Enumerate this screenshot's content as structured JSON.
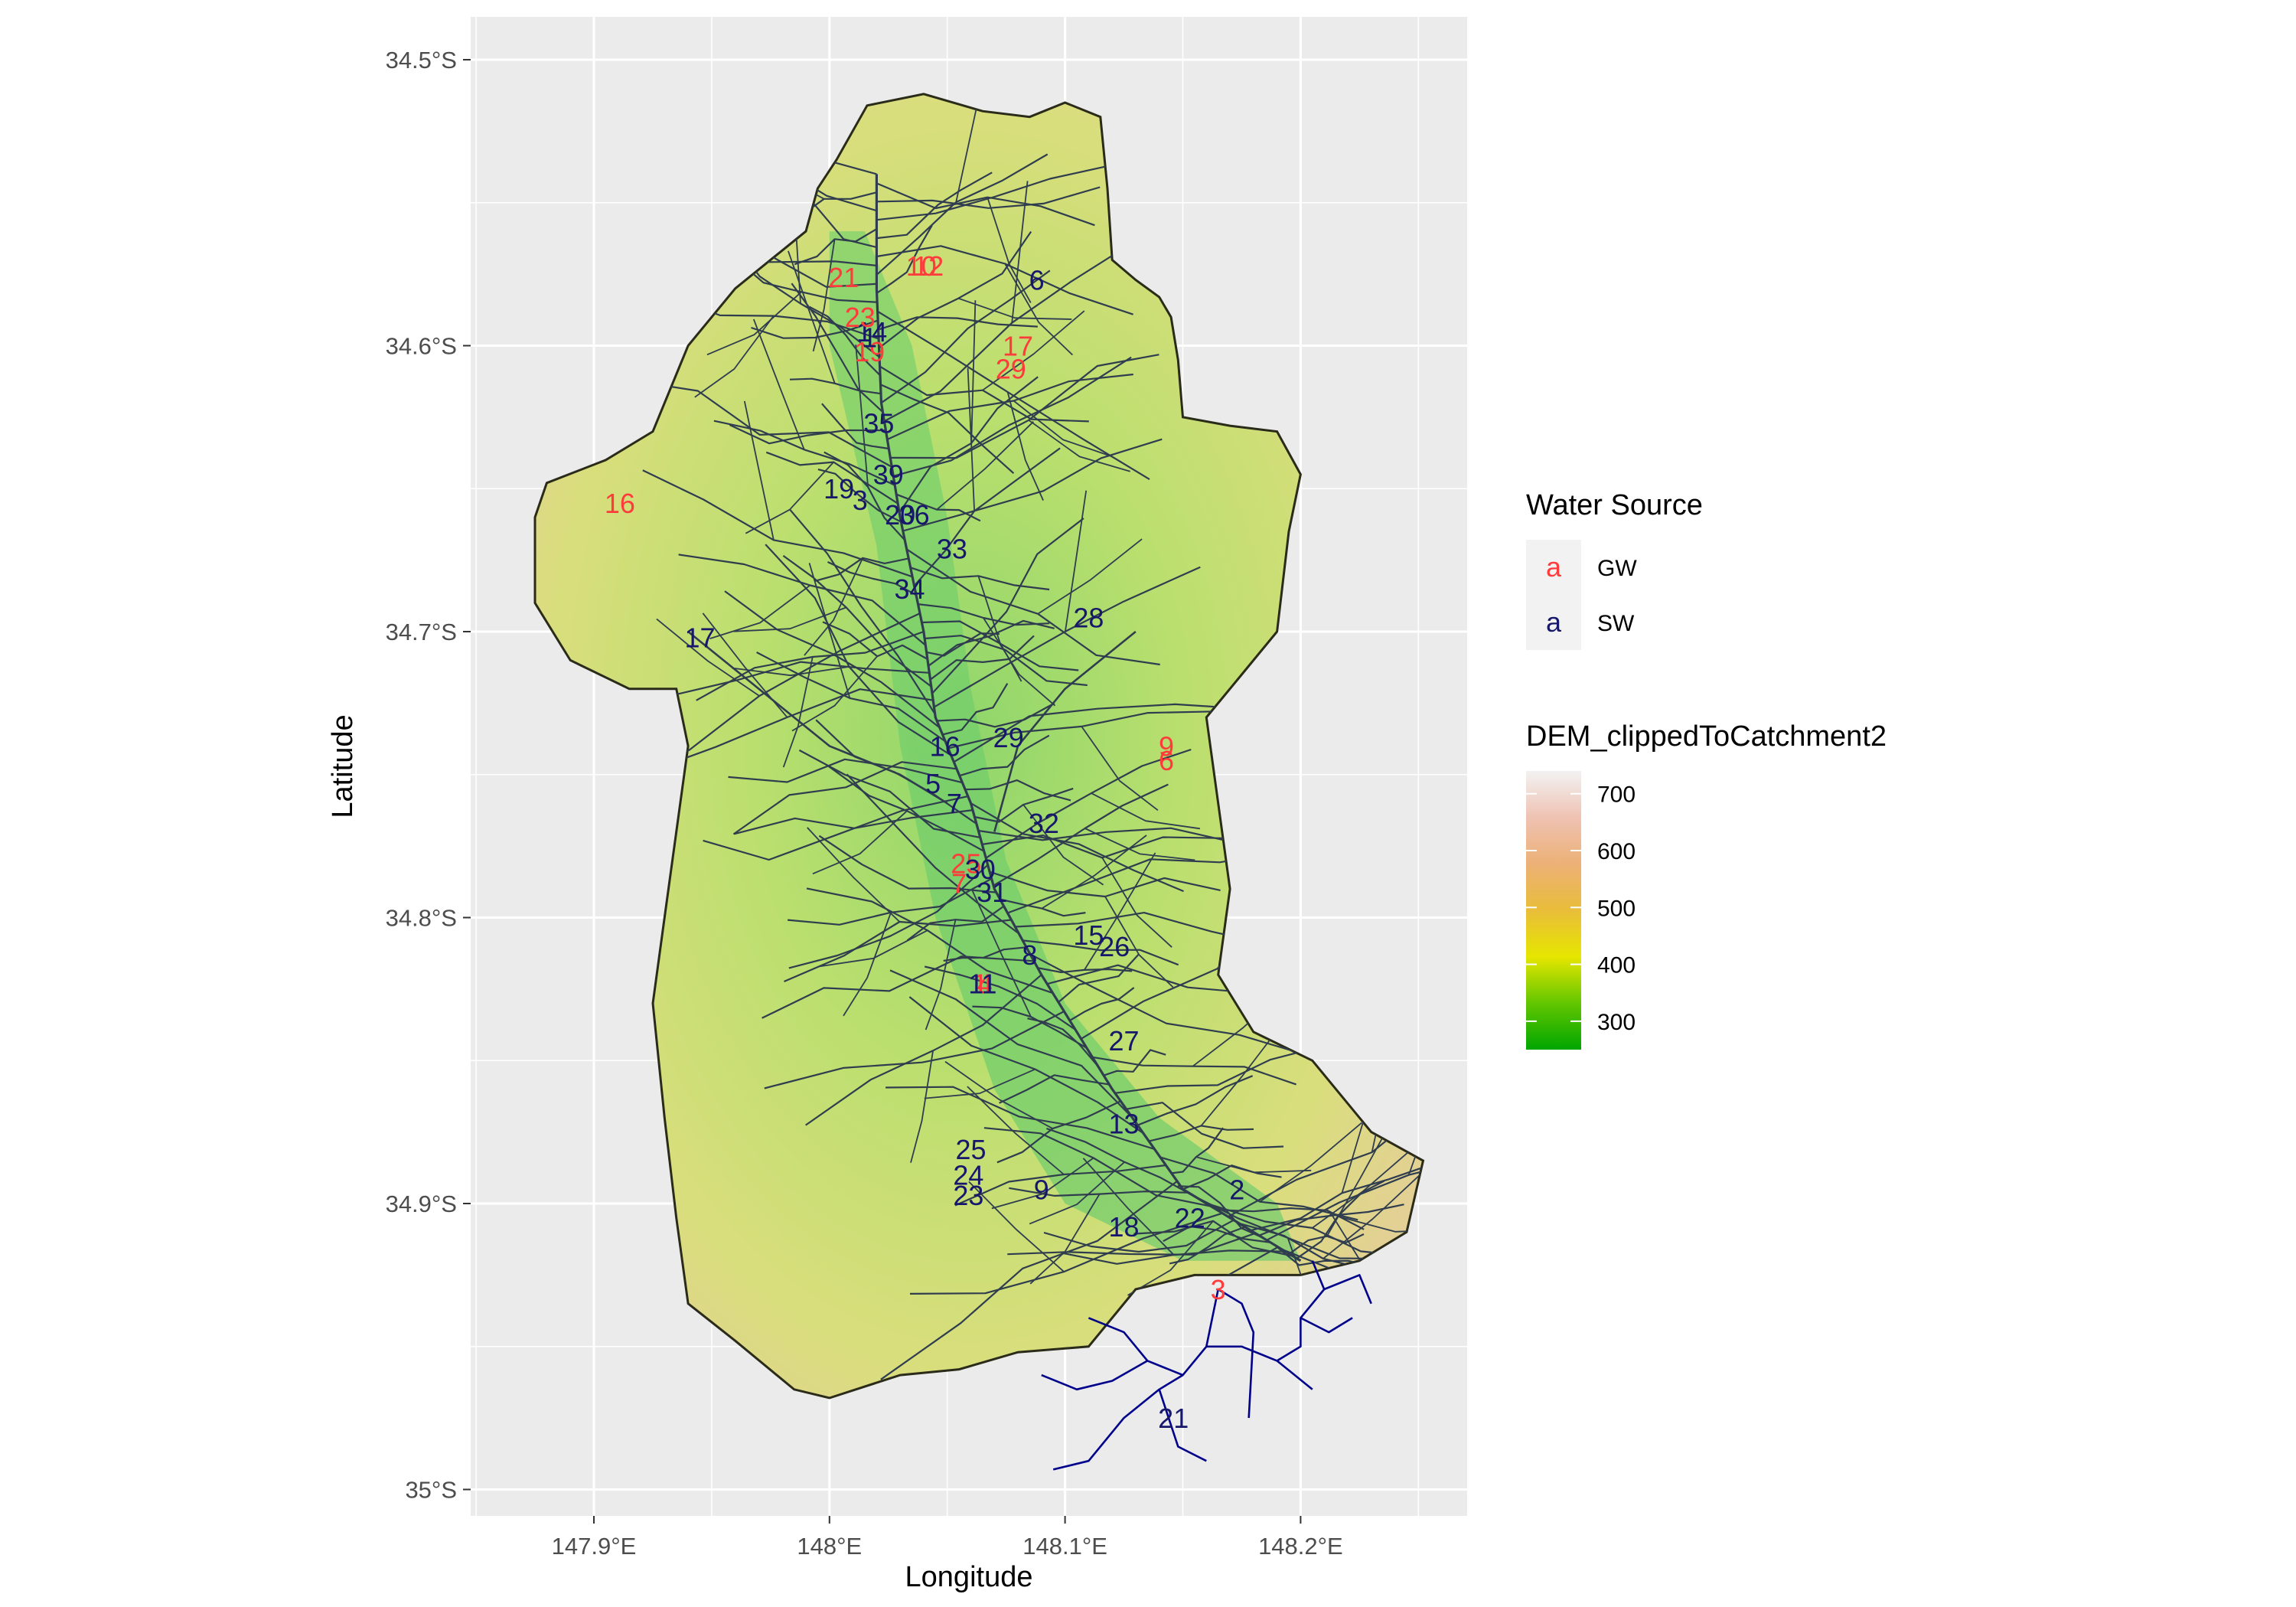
{
  "chart_data": {
    "type": "map",
    "xlabel": "Longitude",
    "ylabel": "Latitude",
    "xlim": [
      147.85,
      148.27
    ],
    "ylim": [
      -35.01,
      -34.485
    ],
    "x_ticks": [
      {
        "value": 147.9,
        "label": "147.9°E"
      },
      {
        "value": 148.0,
        "label": "148°E"
      },
      {
        "value": 148.1,
        "label": "148.1°E"
      },
      {
        "value": 148.2,
        "label": "148.2°E"
      }
    ],
    "y_ticks": [
      {
        "value": -34.5,
        "label": "34.5°S"
      },
      {
        "value": -34.6,
        "label": "34.6°S"
      },
      {
        "value": -34.7,
        "label": "34.7°S"
      },
      {
        "value": -34.8,
        "label": "34.8°S"
      },
      {
        "value": -34.9,
        "label": "34.9°S"
      },
      {
        "value": -35.0,
        "label": "35°S"
      }
    ],
    "grid": true,
    "panel_background": "#ebebeb",
    "catchment_boundary": [
      [
        148.016,
        -34.516
      ],
      [
        148.04,
        -34.512
      ],
      [
        148.065,
        -34.518
      ],
      [
        148.085,
        -34.52
      ],
      [
        148.1,
        -34.515
      ],
      [
        148.115,
        -34.52
      ],
      [
        148.118,
        -34.545
      ],
      [
        148.12,
        -34.57
      ],
      [
        148.13,
        -34.577
      ],
      [
        148.14,
        -34.583
      ],
      [
        148.145,
        -34.59
      ],
      [
        148.148,
        -34.605
      ],
      [
        148.15,
        -34.625
      ],
      [
        148.17,
        -34.628
      ],
      [
        148.19,
        -34.63
      ],
      [
        148.2,
        -34.645
      ],
      [
        148.195,
        -34.665
      ],
      [
        148.19,
        -34.7
      ],
      [
        148.175,
        -34.715
      ],
      [
        148.16,
        -34.73
      ],
      [
        148.165,
        -34.76
      ],
      [
        148.17,
        -34.79
      ],
      [
        148.165,
        -34.82
      ],
      [
        148.18,
        -34.84
      ],
      [
        148.205,
        -34.85
      ],
      [
        148.23,
        -34.875
      ],
      [
        148.252,
        -34.885
      ],
      [
        148.245,
        -34.91
      ],
      [
        148.225,
        -34.92
      ],
      [
        148.2,
        -34.925
      ],
      [
        148.18,
        -34.925
      ],
      [
        148.155,
        -34.925
      ],
      [
        148.13,
        -34.93
      ],
      [
        148.11,
        -34.95
      ],
      [
        148.08,
        -34.952
      ],
      [
        148.055,
        -34.958
      ],
      [
        148.03,
        -34.96
      ],
      [
        148.0,
        -34.968
      ],
      [
        147.985,
        -34.965
      ],
      [
        147.96,
        -34.948
      ],
      [
        147.94,
        -34.935
      ],
      [
        147.935,
        -34.905
      ],
      [
        147.93,
        -34.87
      ],
      [
        147.925,
        -34.83
      ],
      [
        147.93,
        -34.8
      ],
      [
        147.935,
        -34.77
      ],
      [
        147.94,
        -34.74
      ],
      [
        147.935,
        -34.72
      ],
      [
        147.915,
        -34.72
      ],
      [
        147.89,
        -34.71
      ],
      [
        147.875,
        -34.69
      ],
      [
        147.875,
        -34.66
      ],
      [
        147.88,
        -34.648
      ],
      [
        147.905,
        -34.64
      ],
      [
        147.925,
        -34.63
      ],
      [
        147.94,
        -34.6
      ],
      [
        147.96,
        -34.58
      ],
      [
        147.99,
        -34.56
      ],
      [
        147.995,
        -34.545
      ],
      [
        148.003,
        -34.535
      ],
      [
        148.016,
        -34.516
      ]
    ],
    "site_labels": [
      {
        "label": "1",
        "source": "GW",
        "x": 148.064,
        "y": -34.823
      },
      {
        "label": "2",
        "source": "SW",
        "x": 148.173,
        "y": -34.895
      },
      {
        "label": "3",
        "source": "SW",
        "x": 148.013,
        "y": -34.654
      },
      {
        "label": "4",
        "source": "GW",
        "x": 148.066,
        "y": -34.823
      },
      {
        "label": "5",
        "source": "SW",
        "x": 148.044,
        "y": -34.753
      },
      {
        "label": "6",
        "source": "SW",
        "x": 148.088,
        "y": -34.577
      },
      {
        "label": "7",
        "source": "SW",
        "x": 148.053,
        "y": -34.76
      },
      {
        "label": "7",
        "source": "GW",
        "x": 148.055,
        "y": -34.788
      },
      {
        "label": "8",
        "source": "SW",
        "x": 148.085,
        "y": -34.813
      },
      {
        "label": "9",
        "source": "SW",
        "x": 148.09,
        "y": -34.895
      },
      {
        "label": "9",
        "source": "GW",
        "x": 148.143,
        "y": -34.74
      },
      {
        "label": "6",
        "source": "GW",
        "x": 148.143,
        "y": -34.745
      },
      {
        "label": "10",
        "source": "GW",
        "x": 148.039,
        "y": -34.572
      },
      {
        "label": "12",
        "source": "GW",
        "x": 148.042,
        "y": -34.572
      },
      {
        "label": "11",
        "source": "SW",
        "x": 148.065,
        "y": -34.823
      },
      {
        "label": "13",
        "source": "SW",
        "x": 148.125,
        "y": -34.872
      },
      {
        "label": "14",
        "source": "SW",
        "x": 148.018,
        "y": -34.595
      },
      {
        "label": "15",
        "source": "SW",
        "x": 148.11,
        "y": -34.806
      },
      {
        "label": "16",
        "source": "SW",
        "x": 148.049,
        "y": -34.74
      },
      {
        "label": "16",
        "source": "GW",
        "x": 147.911,
        "y": -34.655
      },
      {
        "label": "17",
        "source": "SW",
        "x": 147.945,
        "y": -34.702
      },
      {
        "label": "17",
        "source": "GW",
        "x": 148.08,
        "y": -34.6
      },
      {
        "label": "18",
        "source": "SW",
        "x": 148.125,
        "y": -34.908
      },
      {
        "label": "19",
        "source": "SW",
        "x": 148.004,
        "y": -34.65
      },
      {
        "label": "19",
        "source": "GW",
        "x": 148.017,
        "y": -34.602
      },
      {
        "label": "20",
        "source": "SW",
        "x": 148.03,
        "y": -34.659
      },
      {
        "label": "21",
        "source": "SW",
        "x": 148.146,
        "y": -34.975
      },
      {
        "label": "21",
        "source": "GW",
        "x": 148.006,
        "y": -34.576
      },
      {
        "label": "22",
        "source": "SW",
        "x": 148.153,
        "y": -34.905
      },
      {
        "label": "23",
        "source": "SW",
        "x": 148.059,
        "y": -34.897
      },
      {
        "label": "23",
        "source": "GW",
        "x": 148.013,
        "y": -34.59
      },
      {
        "label": "24",
        "source": "SW",
        "x": 148.059,
        "y": -34.89
      },
      {
        "label": "25",
        "source": "SW",
        "x": 148.06,
        "y": -34.881
      },
      {
        "label": "25",
        "source": "GW",
        "x": 148.058,
        "y": -34.781
      },
      {
        "label": "26",
        "source": "SW",
        "x": 148.121,
        "y": -34.81
      },
      {
        "label": "27",
        "source": "SW",
        "x": 148.125,
        "y": -34.843
      },
      {
        "label": "28",
        "source": "SW",
        "x": 148.11,
        "y": -34.695
      },
      {
        "label": "29",
        "source": "SW",
        "x": 148.076,
        "y": -34.737
      },
      {
        "label": "29",
        "source": "GW",
        "x": 148.077,
        "y": -34.608
      },
      {
        "label": "30",
        "source": "SW",
        "x": 148.064,
        "y": -34.783
      },
      {
        "label": "31",
        "source": "SW",
        "x": 148.069,
        "y": -34.791
      },
      {
        "label": "32",
        "source": "SW",
        "x": 148.091,
        "y": -34.767
      },
      {
        "label": "33",
        "source": "SW",
        "x": 148.052,
        "y": -34.671
      },
      {
        "label": "34",
        "source": "SW",
        "x": 148.034,
        "y": -34.685
      },
      {
        "label": "35",
        "source": "SW",
        "x": 148.021,
        "y": -34.627
      },
      {
        "label": "36",
        "source": "SW",
        "x": 148.036,
        "y": -34.659
      },
      {
        "label": "39",
        "source": "SW",
        "x": 148.025,
        "y": -34.645
      },
      {
        "label": "1",
        "source": "SW",
        "x": 148.017,
        "y": -34.597
      },
      {
        "label": "3",
        "source": "GW",
        "x": 148.165,
        "y": -34.93
      }
    ],
    "legend": {
      "water_source": {
        "title": "Water Source",
        "key_glyph": "a",
        "entries": [
          {
            "label": "GW",
            "color": "#ff3b3b"
          },
          {
            "label": "SW",
            "color": "#17176b"
          }
        ]
      },
      "dem": {
        "title": "DEM_clippedToCatchment2",
        "ticks": [
          700,
          600,
          500,
          400,
          300
        ],
        "range": [
          250,
          740
        ],
        "colors": [
          "#00a600",
          "#63c600",
          "#e6e600",
          "#e9bd3a",
          "#ecb176",
          "#efc2b3",
          "#f2f2f2"
        ]
      }
    },
    "colors": {
      "gw": "#ff3b3b",
      "sw": "#17176b",
      "stream": "#2f3d4f",
      "downstream_river": "#00008b",
      "boundary": "#2b2b1a"
    }
  }
}
